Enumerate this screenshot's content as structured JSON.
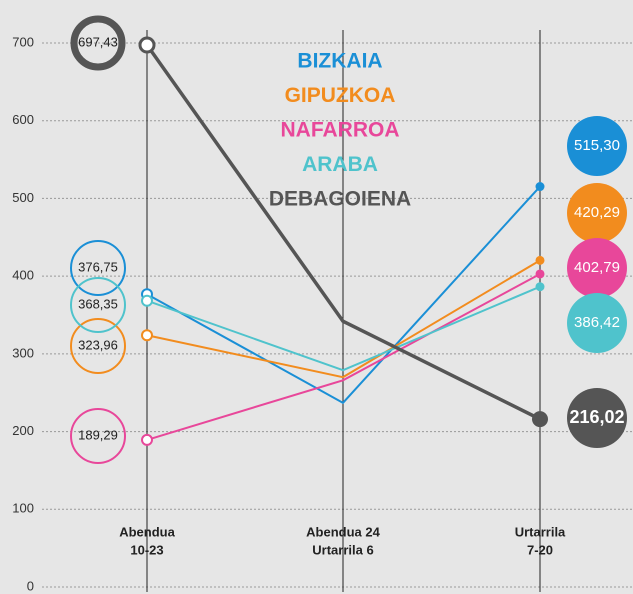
{
  "chart_data": {
    "type": "line",
    "categories": [
      [
        "Abendua",
        "10-23"
      ],
      [
        "Abendua 24",
        "Urtarrila 6"
      ],
      [
        "Urtarrila",
        "7-20"
      ]
    ],
    "series": [
      {
        "name": "BIZKAIA",
        "color": "#1a8fd6",
        "values": [
          376.75,
          237,
          515.3
        ],
        "value_labels": [
          "376,75",
          null,
          "515,30"
        ]
      },
      {
        "name": "GIPUZKOA",
        "color": "#f28c1e",
        "values": [
          323.96,
          270,
          420.29
        ],
        "value_labels": [
          "323,96",
          null,
          "420,29"
        ]
      },
      {
        "name": "NAFARROA",
        "color": "#e8479a",
        "values": [
          189.29,
          266,
          402.79
        ],
        "value_labels": [
          "189,29",
          null,
          "402,79"
        ]
      },
      {
        "name": "ARABA",
        "color": "#4fc3cc",
        "values": [
          368.35,
          279,
          386.42
        ],
        "value_labels": [
          "368,35",
          null,
          "386,42"
        ]
      },
      {
        "name": "DEBAGOIENA",
        "color": "#555555",
        "values": [
          697.43,
          342,
          216.02
        ],
        "value_labels": [
          "697,43",
          null,
          "216,02"
        ]
      }
    ],
    "ylim": [
      0,
      700
    ],
    "yticks": [
      0,
      100,
      200,
      300,
      400,
      500,
      600,
      700
    ],
    "grid": true
  }
}
